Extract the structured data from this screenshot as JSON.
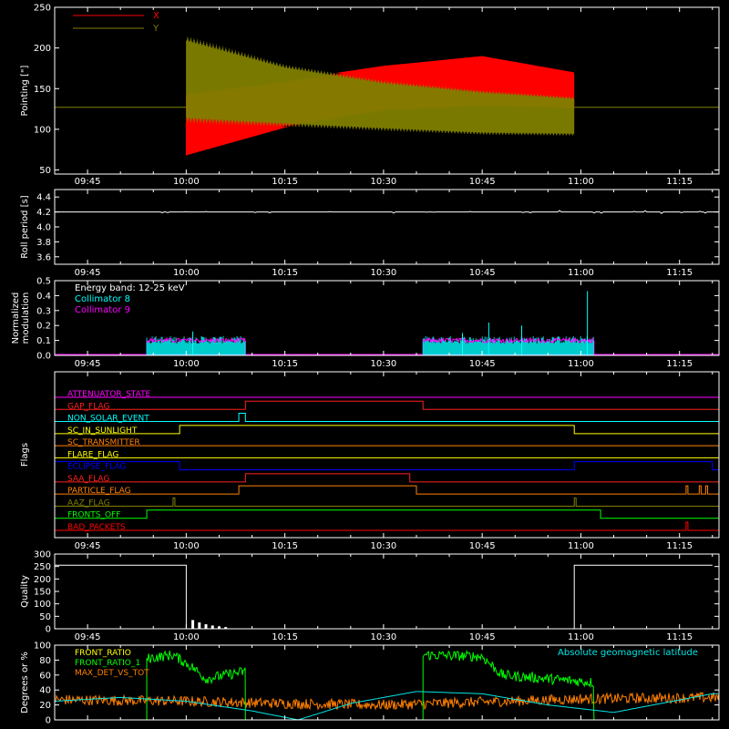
{
  "colors": {
    "background": "#000000",
    "axis": "#ffffff",
    "x": "#ff0000",
    "y": "#808000",
    "collimator8": "#00ffff",
    "collimator9": "#ff00ff",
    "front_ratio": "#ffff00",
    "front_ratio_alt": "#00ff00",
    "max_det": "#ff8000",
    "geomag": "#00e5e5"
  },
  "x_ticks": [
    "09:45",
    "10:00",
    "10:15",
    "10:30",
    "10:45",
    "11:00",
    "11:15"
  ],
  "chart_data": [
    {
      "id": "pointing",
      "type": "line",
      "ylabel": "Pointing [\"]",
      "ylim": [
        45,
        250
      ],
      "yticks": [
        50,
        100,
        150,
        200,
        250
      ],
      "legend": [
        {
          "name": "X",
          "color": "#ff0000"
        },
        {
          "name": "Y",
          "color": "#808000"
        }
      ],
      "series": [
        {
          "name": "X",
          "x": [
            "09:40",
            "10:00",
            "10:15",
            "10:30",
            "10:45",
            "10:59"
          ],
          "lower": [
            127,
            68,
            102,
            122,
            127,
            125
          ],
          "upper": [
            127,
            145,
            160,
            178,
            190,
            170
          ]
        },
        {
          "name": "Y",
          "x": [
            "09:40",
            "10:00",
            "10:15",
            "10:30",
            "10:45",
            "10:59"
          ],
          "lower": [
            127,
            108,
            103,
            98,
            93,
            92
          ],
          "upper": [
            127,
            215,
            180,
            160,
            148,
            140
          ]
        }
      ]
    },
    {
      "id": "roll",
      "type": "line",
      "ylabel": "Roll period [s]",
      "ylim": [
        3.5,
        4.5
      ],
      "yticks": [
        "3.6",
        "3.8",
        "4.0",
        "4.2",
        "4.4"
      ],
      "series": [
        {
          "name": "Roll period",
          "x": [
            "09:40",
            "11:20"
          ],
          "values": [
            4.2,
            4.2
          ]
        }
      ]
    },
    {
      "id": "modulation",
      "type": "line",
      "ylabel": "Normalized modulation",
      "ylim": [
        0,
        0.5
      ],
      "yticks": [
        "0.0",
        "0.1",
        "0.2",
        "0.3",
        "0.4",
        "0.5"
      ],
      "legend": [
        {
          "name": "Energy band: 12-25 keV",
          "color": "#ffffff"
        },
        {
          "name": "Collimator 8",
          "color": "#00ffff"
        },
        {
          "name": "Collimator 9",
          "color": "#ff00ff"
        }
      ],
      "active_windows": [
        [
          "09:54",
          "10:09"
        ],
        [
          "10:36",
          "11:02"
        ]
      ],
      "typical_level": 0.1,
      "peaks": [
        {
          "x": "10:01",
          "value": 0.16
        },
        {
          "x": "10:42",
          "value": 0.15
        },
        {
          "x": "10:46",
          "value": 0.22
        },
        {
          "x": "10:51",
          "value": 0.2
        },
        {
          "x": "11:01",
          "value": 0.43
        }
      ]
    },
    {
      "id": "flags",
      "type": "table",
      "ylabel": "Flags",
      "flags": [
        {
          "name": "ATTENUATOR_STATE",
          "color": "#ff00ff",
          "high": []
        },
        {
          "name": "GAP_FLAG",
          "color": "#ff2020",
          "high": [
            [
              "10:09",
              "10:36"
            ]
          ]
        },
        {
          "name": "NON_SOLAR_EVENT",
          "color": "#00ffff",
          "high": [
            [
              "10:08",
              "10:09"
            ]
          ]
        },
        {
          "name": "SC_IN_SUNLIGHT",
          "color": "#ffff00",
          "high": [
            [
              "09:59",
              "10:59"
            ]
          ]
        },
        {
          "name": "SC_TRANSMITTER",
          "color": "#ff8000",
          "high": []
        },
        {
          "name": "FLARE_FLAG",
          "color": "#ffff00",
          "high": []
        },
        {
          "name": "ECLIPSE_FLAG",
          "color": "#0000ff",
          "high": [
            [
              "09:40",
              "09:59"
            ],
            [
              "10:59",
              "11:20"
            ]
          ]
        },
        {
          "name": "SAA_FLAG",
          "color": "#ff2020",
          "high": [
            [
              "10:09",
              "10:34"
            ]
          ]
        },
        {
          "name": "PARTICLE_FLAG",
          "color": "#ff8000",
          "high": [
            [
              "10:08",
              "10:35"
            ],
            [
              "11:16",
              "11:16"
            ],
            [
              "11:18",
              "11:18"
            ],
            [
              "11:19",
              "11:19"
            ]
          ]
        },
        {
          "name": "AAZ_FLAG",
          "color": "#808000",
          "high": [
            [
              "09:58",
              "09:58"
            ],
            [
              "10:59",
              "10:59"
            ]
          ]
        },
        {
          "name": "FRONTS_OFF",
          "color": "#00ff00",
          "high": [
            [
              "09:54",
              "11:03"
            ]
          ]
        },
        {
          "name": "BAD_PACKETS",
          "color": "#ff0000",
          "high": [
            [
              "11:16",
              "11:16"
            ]
          ]
        }
      ]
    },
    {
      "id": "quality",
      "type": "line",
      "ylabel": "Quality",
      "ylim": [
        0,
        300
      ],
      "yticks": [
        0,
        50,
        100,
        150,
        200,
        250,
        300
      ],
      "series": [
        {
          "name": "Quality",
          "x": [
            "09:40",
            "10:00",
            "10:00",
            "10:59",
            "10:59",
            "11:20"
          ],
          "values": [
            255,
            255,
            0,
            0,
            255,
            255
          ]
        }
      ],
      "decaying_bursts": {
        "start": "10:01",
        "end": "10:06",
        "first_peak": 35
      }
    },
    {
      "id": "ratios",
      "type": "line",
      "ylabel": "Degrees or %",
      "ylim": [
        0,
        100
      ],
      "yticks": [
        0,
        20,
        40,
        60,
        80,
        100
      ],
      "legend_left": [
        {
          "name": "FRONT_RATIO",
          "color": "#ffff00"
        },
        {
          "name": "FRONT_RATIO_1",
          "color": "#00ff00"
        },
        {
          "name": "MAX_DET_VS_TOT",
          "color": "#ff8000"
        }
      ],
      "legend_right": {
        "name": "Absolute geomagnetic latitude",
        "color": "#00e5e5"
      },
      "series": [
        {
          "name": "FRONT_RATIO_1",
          "segments": [
            {
              "x": [
                "09:54",
                "09:58",
                "10:01",
                "10:03",
                "10:09"
              ],
              "values": [
                82,
                87,
                70,
                55,
                65
              ]
            },
            {
              "x": [
                "10:36",
                "10:40",
                "10:45",
                "10:48",
                "10:55",
                "11:02"
              ],
              "values": [
                87,
                86,
                85,
                60,
                55,
                50
              ]
            }
          ]
        },
        {
          "name": "MAX_DET_VS_TOT",
          "x": [
            "09:40",
            "10:00",
            "10:15",
            "10:30",
            "10:45",
            "11:00",
            "11:20"
          ],
          "values": [
            27,
            25,
            22,
            20,
            24,
            28,
            30
          ]
        },
        {
          "name": "Absolute geomagnetic latitude",
          "x": [
            "09:40",
            "09:50",
            "10:00",
            "10:10",
            "10:17",
            "10:25",
            "10:35",
            "10:45",
            "10:55",
            "11:05",
            "11:20"
          ],
          "values": [
            25,
            30,
            25,
            12,
            0,
            22,
            38,
            35,
            20,
            10,
            35
          ]
        }
      ]
    }
  ]
}
